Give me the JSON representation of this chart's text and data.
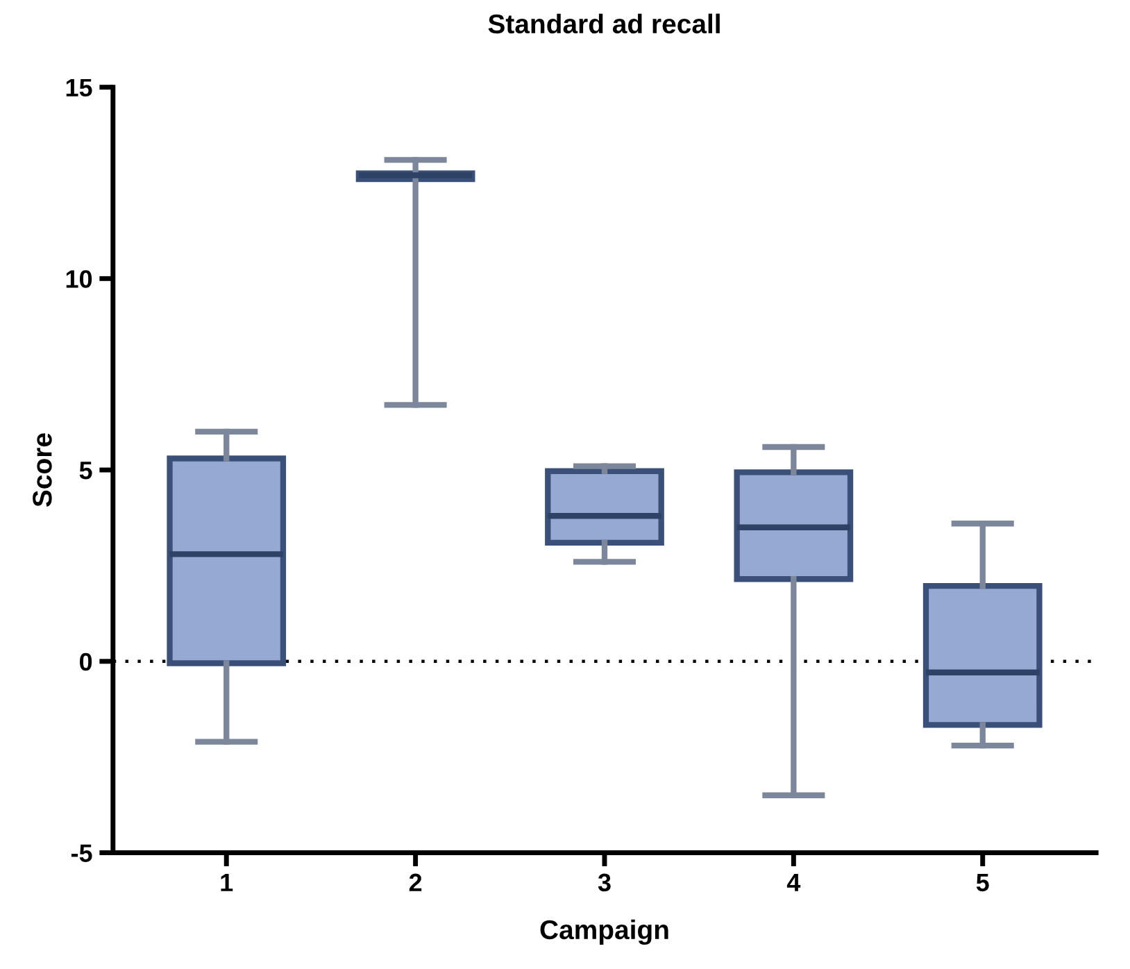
{
  "chart_data": {
    "type": "box",
    "title": "Standard ad recall",
    "xlabel": "Campaign",
    "ylabel": "Score",
    "categories": [
      "1",
      "2",
      "3",
      "4",
      "5"
    ],
    "boxes": [
      {
        "low": -2.1,
        "q1": -0.05,
        "median": 2.8,
        "q3": 5.3,
        "high": 6.0
      },
      {
        "low": 6.7,
        "q1": 12.6,
        "median": 12.7,
        "q3": 12.75,
        "high": 13.1
      },
      {
        "low": 2.6,
        "q1": 3.1,
        "median": 3.8,
        "q3": 4.97,
        "high": 5.1
      },
      {
        "low": -3.5,
        "q1": 2.15,
        "median": 3.5,
        "q3": 4.94,
        "high": 5.6
      },
      {
        "low": -2.2,
        "q1": -1.66,
        "median": -0.29,
        "q3": 1.97,
        "high": 3.6
      }
    ],
    "color": "#96a9d3",
    "ylim": [
      -5,
      15
    ],
    "yticks": [
      {
        "value": -5,
        "label": "-5"
      },
      0,
      5,
      10,
      15
    ],
    "ref_lines": [
      {
        "axis": "y",
        "value": 0,
        "line_style": "dotted",
        "color": "#000000"
      }
    ],
    "grid": false
  }
}
